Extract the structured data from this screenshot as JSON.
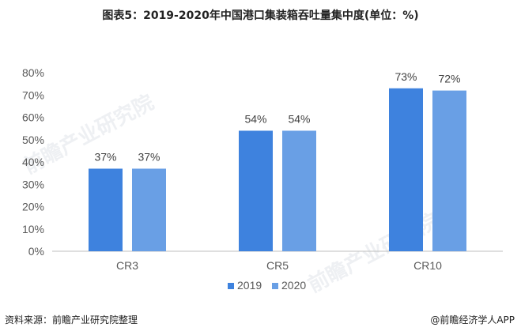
{
  "title": "图表5：2019-2020年中国港口集装箱吞吐量集中度(单位：%)",
  "footer": {
    "source": "资料来源：前瞻产业研究院整理",
    "brand": "@前瞻经济学人APP"
  },
  "watermark": "前瞻产业研究院",
  "colors": {
    "series_2019": "#3e82de",
    "series_2020": "#699fe5",
    "axis": "#bfbfbf",
    "text": "#595959"
  },
  "chart_data": {
    "type": "bar",
    "categories": [
      "CR3",
      "CR5",
      "CR10"
    ],
    "series": [
      {
        "name": "2019",
        "values": [
          37,
          54,
          73
        ],
        "labels": [
          "37%",
          "54%",
          "73%"
        ]
      },
      {
        "name": "2020",
        "values": [
          37,
          54,
          72
        ],
        "labels": [
          "37%",
          "54%",
          "72%"
        ]
      }
    ],
    "yticks": [
      "0%",
      "10%",
      "20%",
      "30%",
      "40%",
      "50%",
      "60%",
      "70%",
      "80%"
    ],
    "ylim": [
      0,
      80
    ],
    "grid": false,
    "legend": "bottom"
  }
}
